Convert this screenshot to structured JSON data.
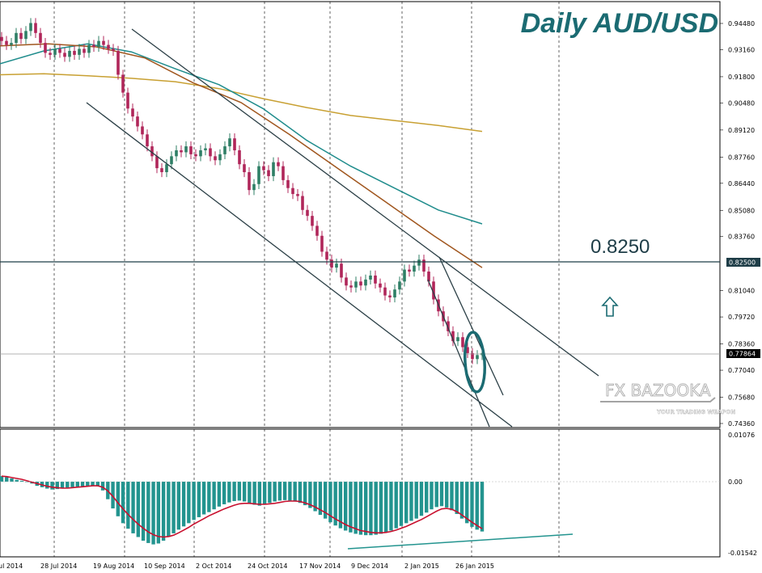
{
  "chart_data": [
    {
      "type": "line",
      "title": "Daily AUD/USD",
      "subtitle": "",
      "xlabel": "",
      "ylabel": "",
      "ylim": [
        0.741,
        0.951
      ],
      "grid": "vertical dashed",
      "x_ticks": [
        "ul 2014",
        "28 Jul 2014",
        "19 Aug 2014",
        "10 Sep 2014",
        "2 Oct 2014",
        "24 Oct 2014",
        "17 Nov 2014",
        "9 Dec 2014",
        "2 Jan 2015",
        "26 Jan 2015"
      ],
      "y_ticks": [
        "0.94480",
        "0.93160",
        "0.91800",
        "0.90480",
        "0.89120",
        "0.87760",
        "0.86440",
        "0.85080",
        "0.83760",
        "0.82500",
        "0.81040",
        "0.79720",
        "0.78360",
        "0.77864",
        "0.77040",
        "0.75680",
        "0.74360"
      ],
      "level_label": "0.8250",
      "level_value": 0.825,
      "current_price_label": "0.77864",
      "current_price": 0.77864,
      "candles_series": {
        "name": "AUD/USD",
        "approx_close": [
          0.936,
          0.934,
          0.935,
          0.94,
          0.937,
          0.941,
          0.945,
          0.94,
          0.935,
          0.93,
          0.929,
          0.932,
          0.93,
          0.928,
          0.931,
          0.929,
          0.932,
          0.93,
          0.934,
          0.933,
          0.936,
          0.934,
          0.932,
          0.931,
          0.919,
          0.91,
          0.902,
          0.898,
          0.893,
          0.889,
          0.883,
          0.878,
          0.872,
          0.87,
          0.874,
          0.878,
          0.881,
          0.88,
          0.883,
          0.879,
          0.878,
          0.881,
          0.882,
          0.878,
          0.876,
          0.879,
          0.883,
          0.887,
          0.881,
          0.874,
          0.87,
          0.861,
          0.864,
          0.873,
          0.871,
          0.868,
          0.875,
          0.873,
          0.866,
          0.862,
          0.859,
          0.858,
          0.851,
          0.848,
          0.843,
          0.838,
          0.83,
          0.826,
          0.822,
          0.824,
          0.817,
          0.813,
          0.812,
          0.815,
          0.813,
          0.816,
          0.818,
          0.814,
          0.812,
          0.808,
          0.807,
          0.811,
          0.815,
          0.821,
          0.82,
          0.823,
          0.826,
          0.82,
          0.815,
          0.806,
          0.8,
          0.795,
          0.79,
          0.785,
          0.787,
          0.782,
          0.779,
          0.776,
          0.778,
          0.779
        ]
      },
      "moving_averages": [
        {
          "color": "#c8a032",
          "values": [
            0.919,
            0.9195,
            0.9185,
            0.9172,
            0.9155,
            0.912,
            0.907,
            0.9025,
            0.8985,
            0.896,
            0.8935,
            0.8905
          ]
        },
        {
          "color": "#1f8c8c",
          "values": [
            0.9245,
            0.931,
            0.9345,
            0.9305,
            0.922,
            0.914,
            0.902,
            0.886,
            0.873,
            0.862,
            0.851,
            0.844
          ]
        },
        {
          "color": "#a0561e",
          "values": [
            0.9335,
            0.9345,
            0.933,
            0.9275,
            0.915,
            0.905,
            0.889,
            0.872,
            0.855,
            0.838,
            0.822
          ]
        }
      ],
      "trendlines_color": "#2b3f46",
      "up_arrow_color": "#1b6b72"
    },
    {
      "type": "bar",
      "indicator": "oscillator",
      "ylim": [
        -0.01542,
        0.01076
      ],
      "y_ticks": [
        "0.01076",
        "0.00",
        "-0.01542"
      ],
      "histogram": [
        0.0012,
        0.001,
        0.0007,
        0.0004,
        0.0002,
        -0.0001,
        -0.0004,
        -0.0009,
        -0.0012,
        -0.0015,
        -0.0017,
        -0.0016,
        -0.0015,
        -0.0013,
        -0.0012,
        -0.0011,
        -0.001,
        -0.0009,
        -0.0008,
        -0.001,
        -0.0019,
        -0.0038,
        -0.0058,
        -0.0075,
        -0.009,
        -0.0102,
        -0.0112,
        -0.012,
        -0.0128,
        -0.0133,
        -0.0136,
        -0.0134,
        -0.0128,
        -0.012,
        -0.0112,
        -0.0104,
        -0.0097,
        -0.009,
        -0.0083,
        -0.0077,
        -0.0071,
        -0.0066,
        -0.006,
        -0.0054,
        -0.0049,
        -0.0045,
        -0.0042,
        -0.0041,
        -0.0043,
        -0.0047,
        -0.005,
        -0.0052,
        -0.005,
        -0.0046,
        -0.0043,
        -0.0041,
        -0.004,
        -0.0041,
        -0.0043,
        -0.0046,
        -0.0051,
        -0.0057,
        -0.0064,
        -0.0072,
        -0.008,
        -0.0088,
        -0.0095,
        -0.0101,
        -0.0106,
        -0.011,
        -0.0113,
        -0.0115,
        -0.0116,
        -0.0116,
        -0.0115,
        -0.0113,
        -0.011,
        -0.0106,
        -0.0101,
        -0.0096,
        -0.009,
        -0.0085,
        -0.008,
        -0.0074,
        -0.0067,
        -0.006,
        -0.0055,
        -0.0053,
        -0.0056,
        -0.0062,
        -0.007,
        -0.008,
        -0.009,
        -0.0098,
        -0.0104,
        -0.0108
      ],
      "signal": [
        0.0012,
        0.0011,
        0.0009,
        0.0007,
        0.0005,
        0.0002,
        -0.0001,
        -0.0004,
        -0.0007,
        -0.001,
        -0.0012,
        -0.0013,
        -0.0014,
        -0.0014,
        -0.0013,
        -0.0012,
        -0.0011,
        -0.001,
        -0.0009,
        -0.0009,
        -0.0012,
        -0.002,
        -0.0032,
        -0.0046,
        -0.0059,
        -0.0071,
        -0.0082,
        -0.0092,
        -0.0101,
        -0.0109,
        -0.0115,
        -0.0119,
        -0.012,
        -0.0119,
        -0.0116,
        -0.0111,
        -0.0105,
        -0.0099,
        -0.0092,
        -0.0086,
        -0.008,
        -0.0074,
        -0.0069,
        -0.0064,
        -0.0059,
        -0.0055,
        -0.0051,
        -0.0048,
        -0.0047,
        -0.0047,
        -0.0048,
        -0.0049,
        -0.0049,
        -0.0048,
        -0.0047,
        -0.0045,
        -0.0043,
        -0.0042,
        -0.0042,
        -0.0043,
        -0.0046,
        -0.005,
        -0.0055,
        -0.0061,
        -0.0067,
        -0.0074,
        -0.0081,
        -0.0087,
        -0.0093,
        -0.0098,
        -0.0102,
        -0.0106,
        -0.0108,
        -0.011,
        -0.0111,
        -0.0111,
        -0.011,
        -0.0108,
        -0.0105,
        -0.0101,
        -0.0097,
        -0.0092,
        -0.0087,
        -0.0082,
        -0.0076,
        -0.007,
        -0.0064,
        -0.0059,
        -0.0058,
        -0.006,
        -0.0065,
        -0.0072,
        -0.008,
        -0.0088,
        -0.0095,
        -0.0102
      ],
      "bar_color": "#23948f",
      "signal_color": "#c8102e"
    }
  ],
  "watermark": {
    "brand": "FX BAZOOKA",
    "tagline": "YOUR TRADING WEAPON"
  }
}
